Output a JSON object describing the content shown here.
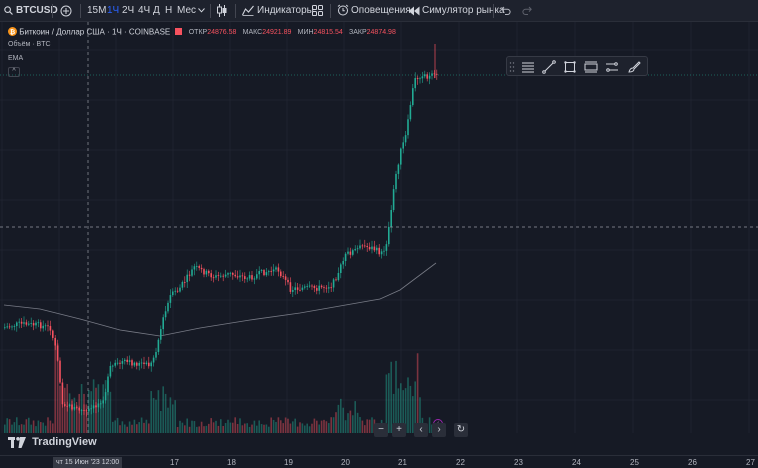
{
  "toolbar": {
    "symbol": "BTCUSD",
    "timeframes": [
      "15М",
      "1Ч",
      "2Ч",
      "4Ч",
      "Д",
      "Н",
      "Мес"
    ],
    "active_timeframe": "1Ч",
    "indicators": "Индикаторы",
    "alerts": "Оповещения",
    "replay": "Симулятор рынка"
  },
  "legend": {
    "title": "Биткоин / Доллар США · 1Ч · COINBASE",
    "open_label": "ОТКР",
    "open": "24876.58",
    "high_label": "МАКС",
    "high": "24921.89",
    "low_label": "МИН",
    "low": "24815.54",
    "close_label": "ЗАКР",
    "close": "24874.98",
    "volume_label": "Объём · BTC",
    "ema_label": "EMA",
    "collapse": "^"
  },
  "logo": "TradingView",
  "nav": {
    "zoom_out": "−",
    "zoom_in": "+",
    "left": "‹",
    "right": "›",
    "reset": "↻"
  },
  "xaxis": {
    "cursor_label": "чт 15 Июн '23   12:00",
    "labels": [
      "17",
      "18",
      "19",
      "20",
      "21",
      "22",
      "23",
      "24",
      "25",
      "26",
      "27"
    ]
  },
  "colors": {
    "up": "#22ab94",
    "down": "#f7525f",
    "background": "#161a25",
    "accent": "#2962ff"
  },
  "icons": {
    "search": "search-icon",
    "add": "plus-circle-icon",
    "chart_type": "candles-icon",
    "indicators": "indicators-icon",
    "templates": "grid-icon",
    "alert": "alarm-clock-icon",
    "replay": "rewind-icon",
    "undo": "undo-icon",
    "redo": "redo-icon"
  },
  "chart_data": {
    "type": "candlestick",
    "symbol": "BTCUSD",
    "interval": "1Ч",
    "x": [
      "17",
      "18",
      "19",
      "20",
      "21",
      "22",
      "23",
      "24",
      "25",
      "26",
      "27"
    ],
    "last": {
      "open": 24876.58,
      "high": 24921.89,
      "low": 24815.54,
      "close": 24874.98
    },
    "series": [
      {
        "name": "EMA"
      },
      {
        "name": "Объём · BTC"
      }
    ],
    "grid": true
  }
}
